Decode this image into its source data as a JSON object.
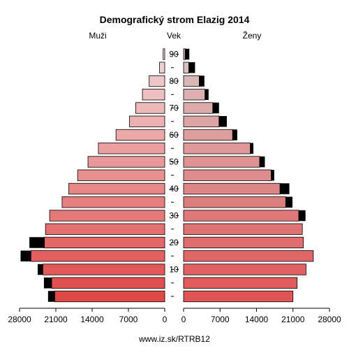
{
  "title": "Demografický strom Elazig 2014",
  "labels": {
    "left": "Muži",
    "center": "Vek",
    "right": "Ženy"
  },
  "footer": "www.iz.sk/RTRB12",
  "colors": {
    "outline": "#000000",
    "overflow": "#000000",
    "male_young": "#e04848",
    "male_old": "#f0d8d8",
    "female_young": "#e05555",
    "female_old": "#dcc2c2"
  },
  "chart_data": {
    "type": "bar",
    "subtype": "population-pyramid",
    "title": "Demografický strom Elazig 2014",
    "categories": [
      "0-4",
      "5-9",
      "10-14",
      "15-19",
      "20-24",
      "25-29",
      "30-34",
      "35-39",
      "40-44",
      "45-49",
      "50-54",
      "55-59",
      "60-64",
      "65-69",
      "70-74",
      "75-79",
      "80-84",
      "85-89",
      "90+"
    ],
    "age_ticks": [
      "10",
      "20",
      "30",
      "40",
      "50",
      "60",
      "70",
      "80",
      "90"
    ],
    "x_ticks_left": [
      "28000",
      "21000",
      "14000",
      "7000",
      "0"
    ],
    "x_ticks_right": [
      "0",
      "7000",
      "14000",
      "21000",
      "28000"
    ],
    "xlim": [
      0,
      28000
    ],
    "series": [
      {
        "name": "Muži",
        "values": [
          21200,
          21800,
          23500,
          25800,
          23200,
          23000,
          22200,
          19800,
          18500,
          16800,
          14800,
          12800,
          9400,
          6800,
          5600,
          4300,
          3000,
          1000,
          300
        ],
        "overflow": [
          1300,
          1500,
          1000,
          2000,
          2900,
          0,
          0,
          0,
          0,
          0,
          0,
          0,
          0,
          0,
          0,
          0,
          0,
          0,
          0
        ]
      },
      {
        "name": "Ženy",
        "values": [
          21000,
          21800,
          23500,
          24900,
          23000,
          22800,
          22100,
          19600,
          18500,
          16800,
          14600,
          12800,
          9400,
          6800,
          5600,
          4100,
          3000,
          1000,
          300
        ],
        "overflow": [
          0,
          0,
          0,
          0,
          0,
          0,
          1300,
          1300,
          1800,
          600,
          1000,
          600,
          900,
          1500,
          1200,
          700,
          1000,
          1200,
          800
        ]
      }
    ]
  }
}
